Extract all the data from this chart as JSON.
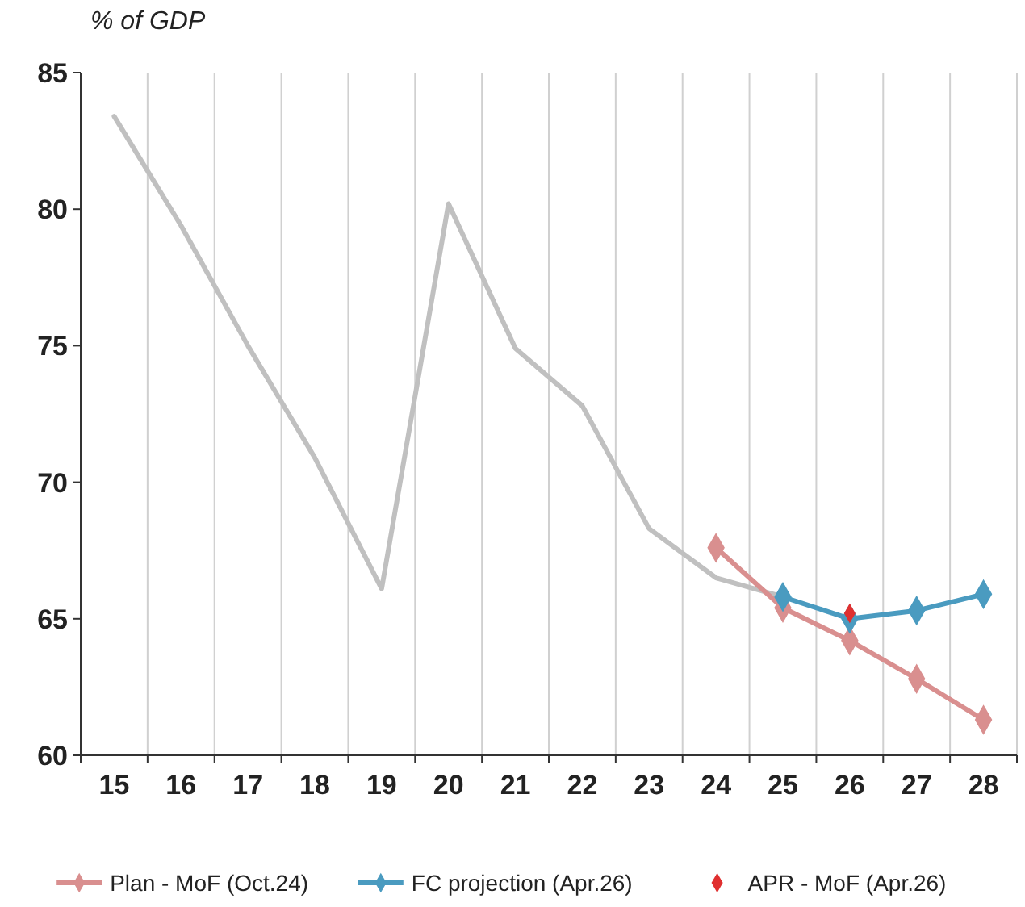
{
  "chart_data": {
    "type": "line",
    "ylabel": "% of GDP",
    "categories": [
      "15",
      "16",
      "17",
      "18",
      "19",
      "20",
      "21",
      "22",
      "23",
      "24",
      "25",
      "26",
      "27",
      "28"
    ],
    "ylim": [
      60,
      85
    ],
    "yticks": [
      60,
      65,
      70,
      75,
      80,
      85
    ],
    "grid": "x",
    "legend": "bottom",
    "line_style": "solid",
    "series": [
      {
        "color": "#c0c0c0",
        "marker": "none",
        "values": [
          83.4,
          79.4,
          75.0,
          70.9,
          66.1,
          80.2,
          74.9,
          72.8,
          68.3,
          66.5,
          65.8,
          null,
          null,
          null
        ]
      },
      {
        "name": "Plan - MoF (Oct.24)",
        "color": "#d98f8f",
        "marker": "diamond",
        "values": [
          null,
          null,
          null,
          null,
          null,
          null,
          null,
          null,
          null,
          67.6,
          65.4,
          64.2,
          62.8,
          61.3
        ]
      },
      {
        "name": "FC projection (Apr.26)",
        "color": "#4a9bc0",
        "marker": "diamond",
        "values": [
          null,
          null,
          null,
          null,
          null,
          null,
          null,
          null,
          null,
          null,
          65.8,
          65.0,
          65.3,
          65.9
        ]
      },
      {
        "name": "APR - MoF (Apr.26)",
        "type": "scatter",
        "color": "#e03030",
        "marker": "diamond",
        "values": [
          null,
          null,
          null,
          null,
          null,
          null,
          null,
          null,
          null,
          null,
          null,
          65.2,
          null,
          null
        ]
      }
    ]
  }
}
